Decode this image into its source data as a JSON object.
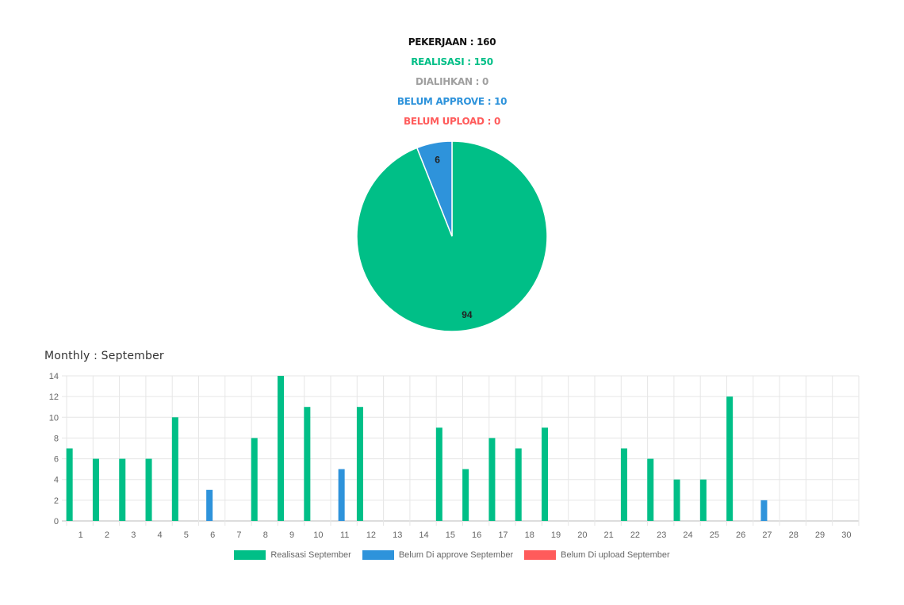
{
  "summary": {
    "pekerjaan": "PEKERJAAN : 160",
    "realisasi": "REALISASI : 150",
    "dialihkan": "DIALIHKAN : 0",
    "belum_approve": "BELUM APPROVE : 10",
    "belum_upload": "BELUM UPLOAD : 0"
  },
  "colors": {
    "realisasi": "#00BF87",
    "dialihkan": "#A0A0A0",
    "belum_approve": "#2E93DB",
    "belum_upload": "#FF5B5B",
    "text_dark": "#111111"
  },
  "monthly_title": "Monthly : September",
  "chart_data": [
    {
      "type": "pie",
      "slices": [
        {
          "name": "Realisasi",
          "value": 94,
          "label": "94",
          "color": "#00BF87"
        },
        {
          "name": "Belum Approve",
          "value": 6,
          "label": "6",
          "color": "#2E93DB"
        }
      ]
    },
    {
      "type": "bar",
      "title": "Monthly : September",
      "categories": [
        "1",
        "2",
        "3",
        "4",
        "5",
        "6",
        "7",
        "8",
        "9",
        "10",
        "11",
        "12",
        "13",
        "14",
        "15",
        "16",
        "17",
        "18",
        "19",
        "20",
        "21",
        "22",
        "23",
        "24",
        "25",
        "26",
        "27",
        "28",
        "29",
        "30"
      ],
      "series": [
        {
          "name": "Realisasi September",
          "color": "#00BF87",
          "values": [
            7,
            6,
            6,
            6,
            10,
            0,
            0,
            8,
            14,
            11,
            0,
            11,
            0,
            0,
            9,
            5,
            8,
            7,
            9,
            0,
            0,
            7,
            6,
            4,
            4,
            12,
            0,
            0,
            0,
            0
          ]
        },
        {
          "name": "Belum Di approve September",
          "color": "#2E93DB",
          "values": [
            0,
            0,
            0,
            0,
            0,
            3,
            0,
            0,
            0,
            0,
            5,
            0,
            0,
            0,
            0,
            0,
            0,
            0,
            0,
            0,
            0,
            0,
            0,
            0,
            0,
            0,
            2,
            0,
            0,
            0
          ]
        },
        {
          "name": "Belum Di upload September",
          "color": "#FF5B5B",
          "values": [
            0,
            0,
            0,
            0,
            0,
            0,
            0,
            0,
            0,
            0,
            0,
            0,
            0,
            0,
            0,
            0,
            0,
            0,
            0,
            0,
            0,
            0,
            0,
            0,
            0,
            0,
            0,
            0,
            0,
            0
          ]
        }
      ],
      "yticks": [
        "0",
        "2",
        "4",
        "6",
        "8",
        "10",
        "12",
        "14"
      ],
      "ylim": [
        0,
        14
      ],
      "grid": true,
      "legend": "bottom"
    }
  ]
}
